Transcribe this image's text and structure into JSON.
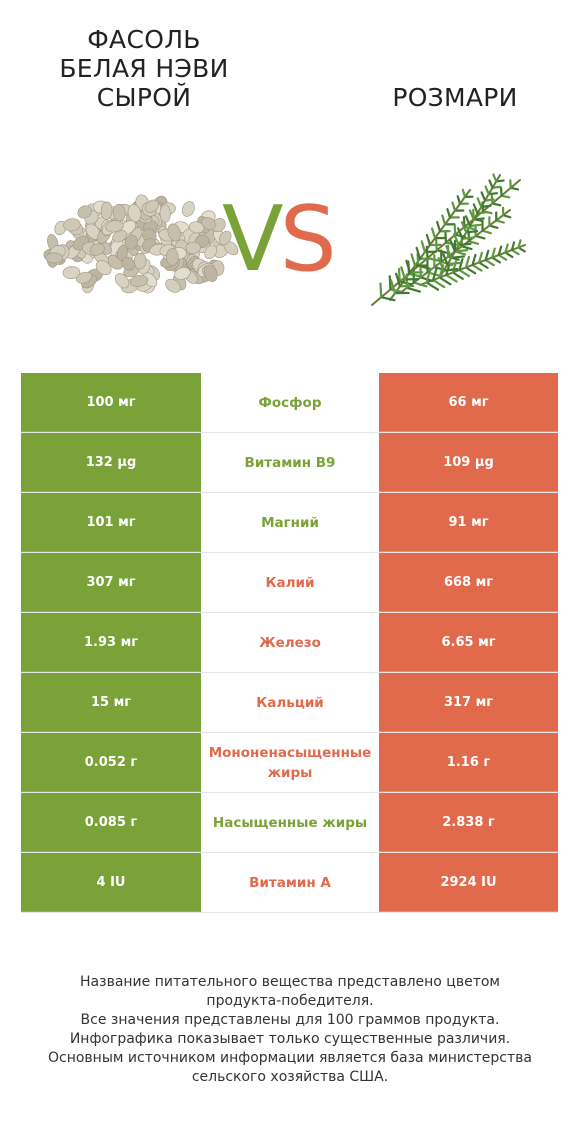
{
  "left_food": {
    "title": "ФАСОЛЬ БЕЛАЯ НЭВИ СЫРОЙ",
    "icon": "white-beans-pile"
  },
  "right_food": {
    "title": "РОЗМАРИ",
    "icon": "rosemary-sprig"
  },
  "vs": {
    "v": "V",
    "s": "S"
  },
  "colors": {
    "winner_left": "#7aa238",
    "winner_right": "#e06a4b"
  },
  "rows": [
    {
      "left": "100 мг",
      "name": "Фосфор",
      "right": "66 мг",
      "winner": "left"
    },
    {
      "left": "132 µg",
      "name": "Витамин B9",
      "right": "109 µg",
      "winner": "left"
    },
    {
      "left": "101 мг",
      "name": "Магний",
      "right": "91 мг",
      "winner": "left"
    },
    {
      "left": "307 мг",
      "name": "Калий",
      "right": "668 мг",
      "winner": "right"
    },
    {
      "left": "1.93 мг",
      "name": "Железо",
      "right": "6.65 мг",
      "winner": "right"
    },
    {
      "left": "15 мг",
      "name": "Кальций",
      "right": "317 мг",
      "winner": "right"
    },
    {
      "left": "0.052 г",
      "name": "Мононенасыщенные жиры",
      "right": "1.16 г",
      "winner": "right"
    },
    {
      "left": "0.085 г",
      "name": "Насыщенные жиры",
      "right": "2.838 г",
      "winner": "left"
    },
    {
      "left": "4 IU",
      "name": "Витамин A",
      "right": "2924 IU",
      "winner": "right"
    }
  ],
  "footer": {
    "line1": "Название питательного вещества представлено цветом",
    "line2": "продукта-победителя.",
    "line3": "Все значения представлены для 100 граммов продукта.",
    "line4": "Инфографика показывает только существенные различия.",
    "line5": "Основным источником информации является база министерства",
    "line6": "сельского хозяйства США."
  }
}
